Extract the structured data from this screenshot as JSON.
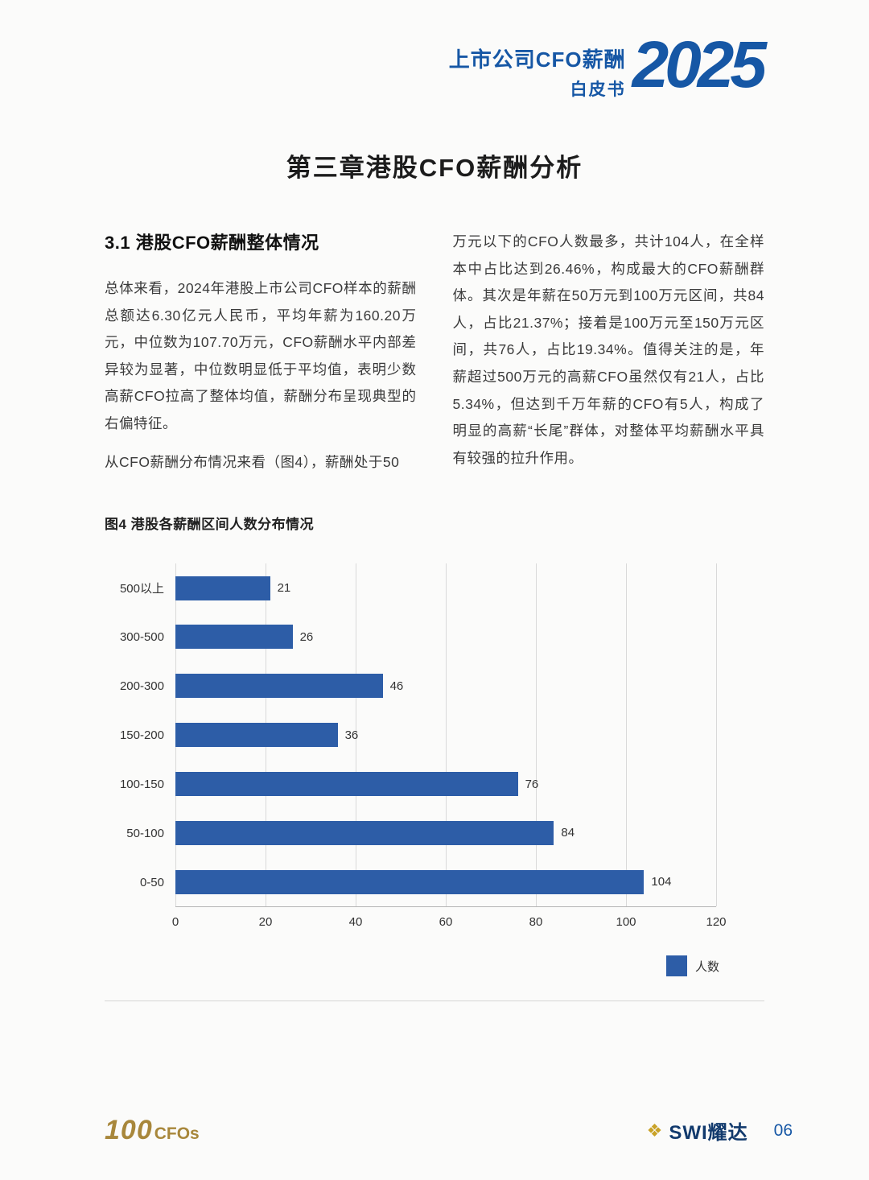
{
  "header": {
    "title_line1": "上市公司CFO薪酬",
    "title_line2": "白皮书",
    "year": "2025"
  },
  "chapter_title": "第三章港股CFO薪酬分析",
  "section": {
    "heading": "3.1 港股CFO薪酬整体情况",
    "paragraph_left_1": "总体来看，2024年港股上市公司CFO样本的薪酬总额达6.30亿元人民币，平均年薪为160.20万元，中位数为107.70万元，CFO薪酬水平内部差异较为显著，中位数明显低于平均值，表明少数高薪CFO拉高了整体均值，薪酬分布呈现典型的右偏特征。",
    "paragraph_left_2": "从CFO薪酬分布情况来看（图4），薪酬处于50",
    "paragraph_right": "万元以下的CFO人数最多，共计104人，在全样本中占比达到26.46%，构成最大的CFO薪酬群体。其次是年薪在50万元到100万元区间，共84人，占比21.37%；接着是100万元至150万元区间，共76人，占比19.34%。值得关注的是，年薪超过500万元的高薪CFO虽然仅有21人，占比5.34%，但达到千万年薪的CFO有5人，构成了明显的高薪“长尾”群体，对整体平均薪酬水平具有较强的拉升作用。"
  },
  "figure": {
    "caption": "图4 港股各薪酬区间人数分布情况"
  },
  "chart_data": {
    "type": "bar",
    "orientation": "horizontal",
    "title": "港股各薪酬区间人数分布情况",
    "categories": [
      "500以上",
      "300-500",
      "200-300",
      "150-200",
      "100-150",
      "50-100",
      "0-50"
    ],
    "values": [
      21,
      26,
      46,
      36,
      76,
      84,
      104
    ],
    "xlim": [
      0,
      120
    ],
    "xticks": [
      0,
      20,
      40,
      60,
      80,
      100,
      120
    ],
    "legend": "人数",
    "legend_position": "bottom-right",
    "grid": true,
    "bar_color": "#2d5da7"
  },
  "footer": {
    "logo_left_100": "100",
    "logo_left_cfos": "CFOs",
    "logo_right": "SWI耀达",
    "diamond_icon": "❖",
    "page_number": "06"
  }
}
